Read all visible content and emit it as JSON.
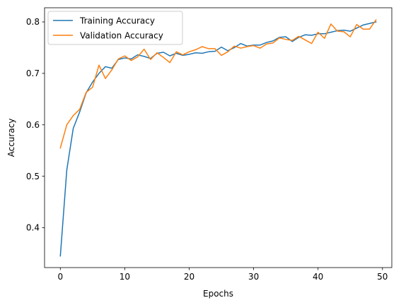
{
  "chart_data": {
    "type": "line",
    "title": "",
    "xlabel": "Epochs",
    "ylabel": "Accuracy",
    "xlim": [
      -2.45,
      51.45
    ],
    "ylim": [
      0.3225,
      0.8275
    ],
    "xticks": [
      0,
      10,
      20,
      30,
      40,
      50
    ],
    "yticks": [
      0.4,
      0.5,
      0.6,
      0.7,
      0.8
    ],
    "grid": false,
    "legend_position": "top-left",
    "x": [
      0,
      1,
      2,
      3,
      4,
      5,
      6,
      7,
      8,
      9,
      10,
      11,
      12,
      13,
      14,
      15,
      16,
      17,
      18,
      19,
      20,
      21,
      22,
      23,
      24,
      25,
      26,
      27,
      28,
      29,
      30,
      31,
      32,
      33,
      34,
      35,
      36,
      37,
      38,
      39,
      40,
      41,
      42,
      43,
      44,
      45,
      46,
      47,
      48,
      49
    ],
    "series": [
      {
        "name": "Training Accuracy",
        "color": "#1f77b4",
        "values": [
          0.345,
          0.512,
          0.593,
          0.625,
          0.662,
          0.683,
          0.7,
          0.713,
          0.71,
          0.727,
          0.73,
          0.728,
          0.736,
          0.733,
          0.729,
          0.739,
          0.741,
          0.734,
          0.739,
          0.735,
          0.737,
          0.74,
          0.739,
          0.742,
          0.743,
          0.751,
          0.744,
          0.75,
          0.758,
          0.753,
          0.755,
          0.755,
          0.76,
          0.763,
          0.77,
          0.771,
          0.762,
          0.77,
          0.775,
          0.774,
          0.777,
          0.777,
          0.78,
          0.783,
          0.784,
          0.782,
          0.788,
          0.794,
          0.797,
          0.8
        ]
      },
      {
        "name": "Validation Accuracy",
        "color": "#ff7f0e",
        "values": [
          0.555,
          0.6,
          0.618,
          0.63,
          0.663,
          0.673,
          0.716,
          0.69,
          0.707,
          0.728,
          0.734,
          0.725,
          0.732,
          0.747,
          0.727,
          0.74,
          0.731,
          0.721,
          0.742,
          0.736,
          0.742,
          0.746,
          0.752,
          0.748,
          0.748,
          0.735,
          0.742,
          0.753,
          0.749,
          0.752,
          0.754,
          0.749,
          0.757,
          0.759,
          0.769,
          0.766,
          0.764,
          0.772,
          0.765,
          0.758,
          0.78,
          0.768,
          0.796,
          0.782,
          0.781,
          0.771,
          0.795,
          0.786,
          0.786,
          0.804
        ]
      }
    ]
  }
}
